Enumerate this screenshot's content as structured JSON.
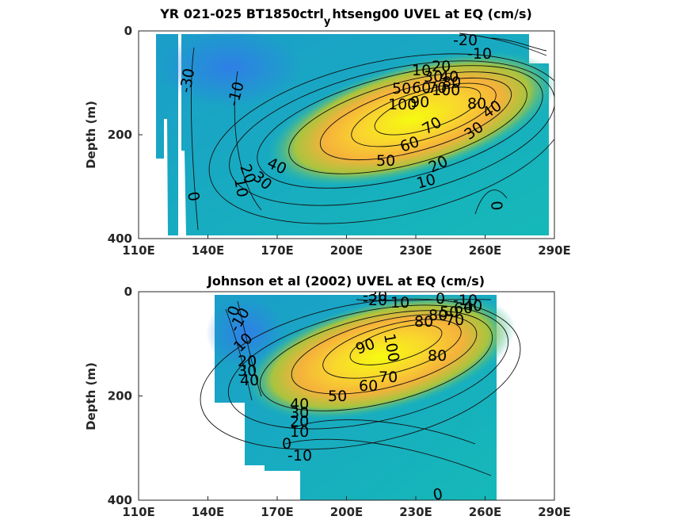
{
  "chart_data": [
    {
      "type": "heatmap",
      "title": "YR 021-025 BT1850ctrl_y htseng00 UVEL at EQ (cm/s)",
      "title_parts": [
        "YR 021-025 BT1850ctrl",
        "y",
        "htseng00 UVEL at EQ (cm/s)"
      ],
      "ylabel": "Depth (m)",
      "xlim": [
        110,
        290
      ],
      "ylim": [
        0,
        400
      ],
      "y_reversed": true,
      "xticks": [
        110,
        140,
        170,
        200,
        230,
        260,
        290
      ],
      "xtick_labels": [
        "110E",
        "140E",
        "170E",
        "200E",
        "230E",
        "260E",
        "290E"
      ],
      "yticks": [
        0,
        200,
        400
      ],
      "ytick_labels": [
        "0",
        "200",
        "400"
      ],
      "contour_labels": [
        "-20",
        "-10",
        "-30",
        "-10",
        "10",
        "20",
        "30",
        "40",
        "50",
        "60",
        "70",
        "80",
        "100",
        "90",
        "100",
        "80",
        "40",
        "30",
        "70",
        "60",
        "50",
        "40",
        "20",
        "10",
        "30",
        "20",
        "10",
        "0",
        "0"
      ],
      "core": {
        "lon": 240,
        "depth": 120,
        "max_speed": 100
      }
    },
    {
      "type": "heatmap",
      "title": "Johnson et al (2002) UVEL at EQ (cm/s)",
      "ylabel": "Depth (m)",
      "xlim": [
        110,
        290
      ],
      "ylim": [
        0,
        400
      ],
      "y_reversed": true,
      "xticks": [
        110,
        140,
        170,
        200,
        230,
        260,
        290
      ],
      "xtick_labels": [
        "110E",
        "140E",
        "170E",
        "200E",
        "230E",
        "260E",
        "290E"
      ],
      "yticks": [
        0,
        200,
        400
      ],
      "ytick_labels": [
        "0",
        "200",
        "400"
      ],
      "contour_labels": [
        "-30",
        "-20",
        "10",
        "0",
        "-10",
        "50",
        "60",
        "80",
        "80",
        "40",
        "70",
        "0",
        "-10",
        "10",
        "20",
        "30",
        "40",
        "90",
        "100",
        "70",
        "80",
        "60",
        "50",
        "40",
        "30",
        "20",
        "10",
        "0",
        "-10",
        "0"
      ],
      "core": {
        "lon": 230,
        "depth": 120,
        "max_speed": 100
      }
    }
  ]
}
